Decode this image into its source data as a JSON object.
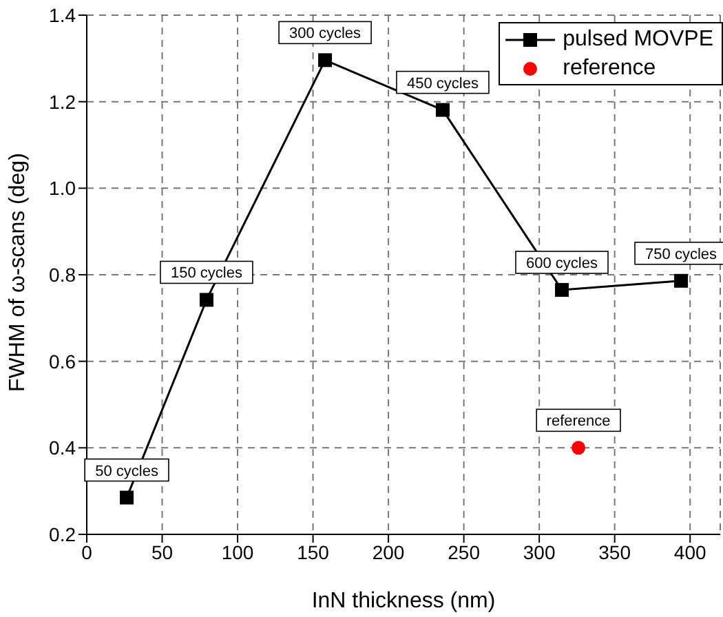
{
  "chart_data": {
    "type": "line",
    "xlabel": "InN thickness (nm)",
    "ylabel": "FWHM of ω-scans (deg)",
    "xlim": [
      0,
      420
    ],
    "xticks": [
      0,
      50,
      100,
      150,
      200,
      250,
      300,
      350,
      400
    ],
    "ylim": [
      0.2,
      1.4
    ],
    "yticks": [
      0.2,
      0.4,
      0.6,
      0.8,
      {
        "value": 1,
        "label": "1.0"
      },
      1.2,
      1.4
    ],
    "grid": true,
    "legend": "top right",
    "series": [
      {
        "name": "pulsed MOVPE",
        "marker": "square",
        "color": "#000000",
        "x": [
          26.5,
          79.4,
          158,
          236,
          315,
          394
        ],
        "values": [
          0.285,
          0.742,
          1.296,
          1.181,
          0.765,
          0.786
        ]
      },
      {
        "name": "reference",
        "type": "scatter",
        "marker": "circle",
        "color": "#ff0000",
        "x": [
          326
        ],
        "values": [
          0.4
        ]
      }
    ],
    "annotations": [
      {
        "text": "50 cycles",
        "x": 26.5,
        "y": 0.285
      },
      {
        "text": "150 cycles",
        "x": 79.4,
        "y": 0.742
      },
      {
        "text": "300 cycles",
        "x": 158,
        "y": 1.296
      },
      {
        "text": "450 cycles",
        "x": 236,
        "y": 1.181
      },
      {
        "text": "600 cycles",
        "x": 315,
        "y": 0.765
      },
      {
        "text": "750 cycles",
        "x": 394,
        "y": 0.786
      },
      {
        "text": "reference",
        "x": 326,
        "y": 0.4
      }
    ]
  }
}
